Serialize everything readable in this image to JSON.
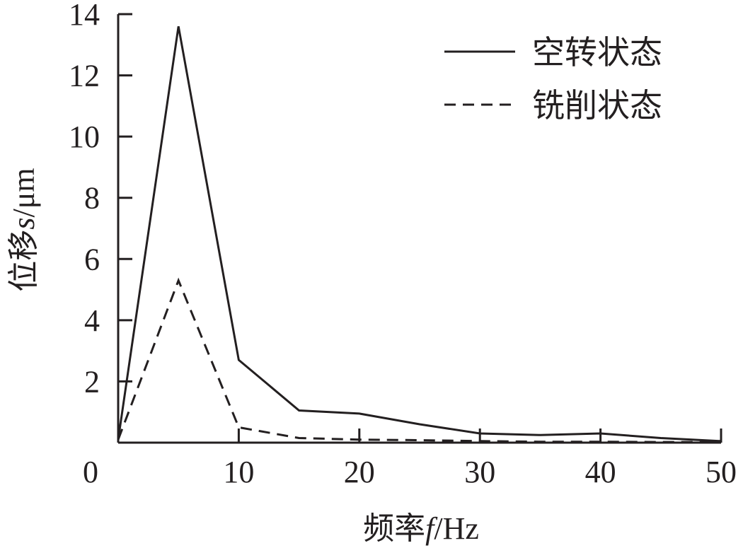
{
  "chart_data": {
    "type": "line",
    "xlabel_prefix": "频率",
    "xlabel_var": "f",
    "xlabel_unit": "/Hz",
    "ylabel_prefix": "位移",
    "ylabel_var": "s",
    "ylabel_unit": "/μm",
    "xlim": [
      0,
      50
    ],
    "ylim": [
      0,
      14
    ],
    "x_ticks": [
      0,
      10,
      20,
      30,
      40,
      50
    ],
    "y_ticks": [
      2,
      4,
      6,
      8,
      10,
      12,
      14
    ],
    "x_tick_labels": [
      "0",
      "10",
      "20",
      "30",
      "40",
      "50"
    ],
    "y_tick_labels": [
      "2",
      "4",
      "6",
      "8",
      "10",
      "12",
      "14"
    ],
    "legend_position": "top-right",
    "grid": false,
    "series": [
      {
        "name": "空转状态",
        "style": "solid",
        "color": "#231f20",
        "x": [
          0,
          5,
          10,
          15,
          20,
          25,
          30,
          35,
          40,
          45,
          50
        ],
        "y": [
          0.1,
          13.6,
          2.7,
          1.05,
          0.95,
          0.6,
          0.3,
          0.25,
          0.3,
          0.15,
          0.05
        ]
      },
      {
        "name": "铣削状态",
        "style": "dashed",
        "color": "#231f20",
        "x": [
          0,
          5,
          10,
          15,
          20,
          25,
          30,
          35,
          40,
          45,
          50
        ],
        "y": [
          0.1,
          5.3,
          0.5,
          0.15,
          0.1,
          0.08,
          0.05,
          0.03,
          0.03,
          0.02,
          0.02
        ]
      }
    ]
  }
}
